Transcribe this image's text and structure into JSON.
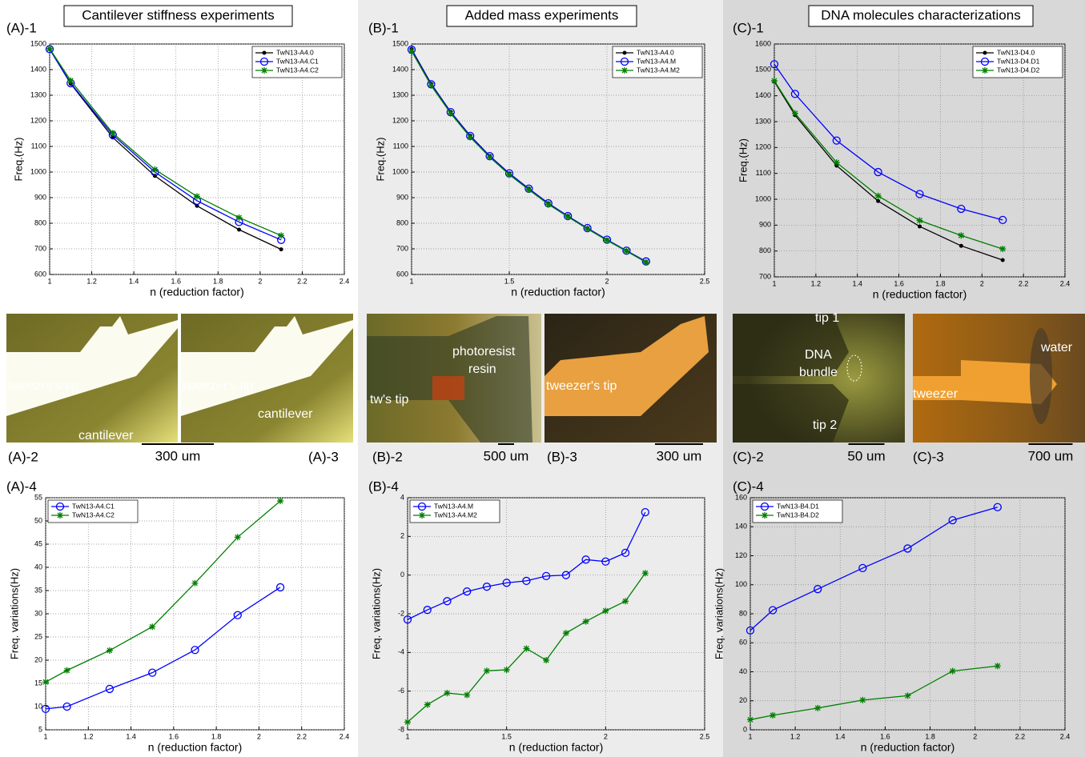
{
  "chart_data": [
    {
      "type": "line",
      "label": "(A)-1",
      "xlabel": "n (reduction factor)",
      "ylabel": "Freq.(Hz)",
      "x": [
        1,
        1.1,
        1.3,
        1.5,
        1.7,
        1.9,
        2.1
      ],
      "xlim": [
        1,
        2.4
      ],
      "xticks": [
        1,
        1.2,
        1.4,
        1.6,
        1.8,
        2,
        2.2,
        2.4
      ],
      "ylim": [
        600,
        1500
      ],
      "yticks": [
        600,
        700,
        800,
        900,
        1000,
        1100,
        1200,
        1300,
        1400,
        1500
      ],
      "grid": true,
      "legend": "upper right",
      "series": [
        {
          "name": "TwN13-A4.0",
          "color": "#000000",
          "marker": ".",
          "values": [
            1480,
            1345,
            1135,
            985,
            868,
            775,
            698
          ]
        },
        {
          "name": "TwN13-A4.C1",
          "color": "#0000ff",
          "marker": "o",
          "values": [
            1480,
            1347,
            1145,
            1000,
            888,
            805,
            735
          ]
        },
        {
          "name": "TwN13-A4.C2",
          "color": "#007f00",
          "marker": "*",
          "values": [
            1482,
            1357,
            1152,
            1010,
            905,
            822,
            752
          ]
        }
      ]
    },
    {
      "type": "line",
      "label": "(B)-1",
      "xlabel": "n (reduction factor)",
      "ylabel": "Freq.(Hz)",
      "x": [
        1,
        1.1,
        1.2,
        1.3,
        1.4,
        1.5,
        1.6,
        1.7,
        1.8,
        1.9,
        2,
        2.1,
        2.2
      ],
      "xlim": [
        1,
        2.5
      ],
      "xticks": [
        1,
        1.5,
        2,
        2.5
      ],
      "ylim": [
        600,
        1500
      ],
      "yticks": [
        600,
        700,
        800,
        900,
        1000,
        1100,
        1200,
        1300,
        1400,
        1500
      ],
      "grid": true,
      "legend": "upper right",
      "series": [
        {
          "name": "TwN13-A4.0",
          "color": "#000000",
          "marker": ".",
          "values": [
            1480,
            1345,
            1235,
            1142,
            1063,
            995,
            935,
            878,
            828,
            780,
            735,
            692,
            648
          ]
        },
        {
          "name": "TwN13-A4.M",
          "color": "#0000ff",
          "marker": "o",
          "values": [
            1478,
            1343,
            1234,
            1141,
            1062,
            995,
            935,
            878,
            828,
            781,
            736,
            693,
            651
          ]
        },
        {
          "name": "TwN13-A4.M2",
          "color": "#007f00",
          "marker": "*",
          "values": [
            1472,
            1338,
            1229,
            1136,
            1058,
            990,
            931,
            874,
            825,
            778,
            733,
            691,
            648
          ]
        }
      ]
    },
    {
      "type": "line",
      "label": "(C)-1",
      "xlabel": "n (reduction factor)",
      "ylabel": "Freq.(Hz)",
      "x": [
        1,
        1.1,
        1.3,
        1.5,
        1.7,
        1.9,
        2.1
      ],
      "xlim": [
        1,
        2.4
      ],
      "xticks": [
        1,
        1.2,
        1.4,
        1.6,
        1.8,
        2,
        2.2,
        2.4
      ],
      "ylim": [
        700,
        1600
      ],
      "yticks": [
        700,
        800,
        900,
        1000,
        1100,
        1200,
        1300,
        1400,
        1500,
        1600
      ],
      "grid": true,
      "legend": "upper right",
      "series": [
        {
          "name": "TwN13-D4.0",
          "color": "#000000",
          "marker": ".",
          "values": [
            1455,
            1325,
            1130,
            993,
            895,
            820,
            765
          ]
        },
        {
          "name": "TwN13-D4.D1",
          "color": "#0000ff",
          "marker": "o",
          "values": [
            1522,
            1407,
            1227,
            1105,
            1020,
            963,
            920
          ]
        },
        {
          "name": "TwN13-D4.D2",
          "color": "#007f00",
          "marker": "*",
          "values": [
            1458,
            1332,
            1142,
            1013,
            918,
            860,
            808
          ]
        }
      ]
    },
    {
      "type": "line",
      "label": "(A)-4",
      "xlabel": "n (reduction factor)",
      "ylabel": "Freq. variations(Hz)",
      "x": [
        1,
        1.1,
        1.3,
        1.5,
        1.7,
        1.9,
        2.1
      ],
      "xlim": [
        1,
        2.4
      ],
      "xticks": [
        1,
        1.2,
        1.4,
        1.6,
        1.8,
        2,
        2.2,
        2.4
      ],
      "ylim": [
        5,
        55
      ],
      "yticks": [
        5,
        10,
        15,
        20,
        25,
        30,
        35,
        40,
        45,
        50,
        55
      ],
      "grid": true,
      "legend": "upper left",
      "series": [
        {
          "name": "TwN13-A4.C1",
          "color": "#0000ff",
          "marker": "o",
          "values": [
            9.5,
            10,
            13.8,
            17.3,
            22.2,
            29.7,
            35.7
          ]
        },
        {
          "name": "TwN13-A4.C2",
          "color": "#007f00",
          "marker": "*",
          "values": [
            15.3,
            17.8,
            22.1,
            27.2,
            36.6,
            46.5,
            54.3
          ]
        }
      ]
    },
    {
      "type": "line",
      "label": "(B)-4",
      "xlabel": "n (reduction factor)",
      "ylabel": "Freq. variations(Hz)",
      "x": [
        1,
        1.1,
        1.2,
        1.3,
        1.4,
        1.5,
        1.6,
        1.7,
        1.8,
        1.9,
        2,
        2.1,
        2.2
      ],
      "xlim": [
        1,
        2.5
      ],
      "xticks": [
        1,
        1.5,
        2,
        2.5
      ],
      "ylim": [
        -8,
        4
      ],
      "yticks": [
        -8,
        -6,
        -4,
        -2,
        0,
        2,
        4
      ],
      "grid": true,
      "legend": "upper left",
      "series": [
        {
          "name": "TwN13-A4.M",
          "color": "#0000ff",
          "marker": "o",
          "values": [
            -2.3,
            -1.8,
            -1.35,
            -0.85,
            -0.6,
            -0.4,
            -0.3,
            -0.05,
            0,
            0.8,
            0.7,
            1.15,
            3.25
          ]
        },
        {
          "name": "TwN13-A4.M2",
          "color": "#007f00",
          "marker": "*",
          "values": [
            -7.6,
            -6.7,
            -6.1,
            -6.2,
            -4.95,
            -4.9,
            -3.8,
            -4.4,
            -3,
            -2.4,
            -1.85,
            -1.35,
            0.1
          ]
        }
      ]
    },
    {
      "type": "line",
      "label": "(C)-4",
      "xlabel": "n (reduction factor)",
      "ylabel": "Freq. variations(Hz)",
      "x": [
        1,
        1.1,
        1.3,
        1.5,
        1.7,
        1.9,
        2.1
      ],
      "xlim": [
        1,
        2.4
      ],
      "xticks": [
        1,
        1.2,
        1.4,
        1.6,
        1.8,
        2,
        2.2,
        2.4
      ],
      "ylim": [
        0,
        160
      ],
      "yticks": [
        0,
        20,
        40,
        60,
        80,
        100,
        120,
        140,
        160
      ],
      "grid": true,
      "legend": "upper left",
      "series": [
        {
          "name": "TwN13-B4.D1",
          "color": "#0000ff",
          "marker": "o",
          "values": [
            68.5,
            82.5,
            97,
            111.5,
            125,
            144.5,
            153.5
          ]
        },
        {
          "name": "TwN13-B4.D2",
          "color": "#007f00",
          "marker": "*",
          "values": [
            7,
            10,
            15,
            20.5,
            23.5,
            40.5,
            44
          ]
        }
      ]
    }
  ],
  "sections": [
    {
      "title": "Cantilever stiffness experiments",
      "photos": [
        {
          "label": "(A)-2",
          "scale": "300 um",
          "annotations": [
            "tweezer's tip",
            "cantilever"
          ]
        },
        {
          "label": "(A)-3",
          "annotations": [
            "tweezer's tip",
            "cantilever"
          ]
        }
      ]
    },
    {
      "title": "Added mass experiments",
      "photos": [
        {
          "label": "(B)-2",
          "scale": "500 um",
          "annotations": [
            "photoresist",
            "resin",
            "tw's tip"
          ]
        },
        {
          "label": "(B)-3",
          "scale": "300 um",
          "annotations": [
            "tweezer's tip"
          ]
        }
      ]
    },
    {
      "title": "DNA molecules characterizations",
      "photos": [
        {
          "label": "(C)-2",
          "scale": "50 um",
          "annotations": [
            "tip 1",
            "DNA",
            "bundle",
            "tip 2"
          ]
        },
        {
          "label": "(C)-3",
          "scale": "700 um",
          "annotations": [
            "water",
            "tweezer"
          ]
        }
      ]
    }
  ]
}
